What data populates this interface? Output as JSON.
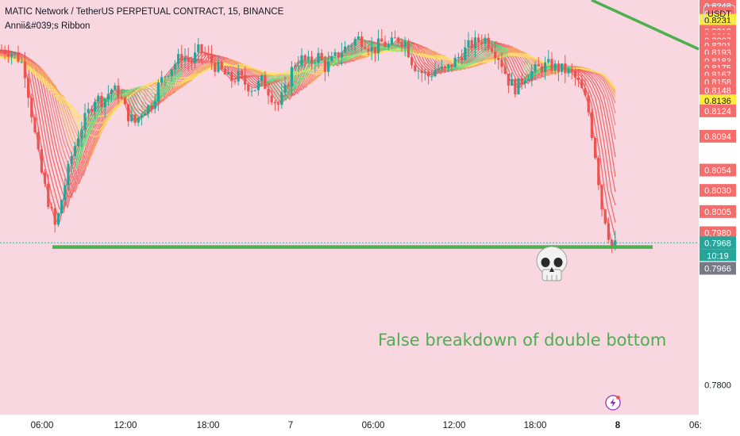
{
  "header": {
    "symbol_line": "MATIC Network / TetherUS PERPETUAL CONTRACT, 15, BINANCE",
    "indicator_name": "Annii&#039;s Ribbon"
  },
  "currency_button": "USDT",
  "annotation": "False breakdown of double bottom",
  "colors": {
    "background": "#f8d7e0",
    "axis_bg": "#ffffff",
    "bull": "#26a69a",
    "bear": "#ef5350",
    "support_line": "#4caf50",
    "ribbon_bull": "#3ddc84",
    "ribbon_bear": "#f05a5a",
    "ribbon_mid": "#ffe066",
    "price_label_red": "#f56c6c",
    "price_label_yellow": "#ffeb3b",
    "current_price_green": "#26a69a",
    "prev_close_gray": "#787b86"
  },
  "icons": {
    "skull": "skull-icon",
    "lightning": "lightning-icon"
  },
  "chart_data": {
    "type": "candlestick",
    "title": "MATIC Network / TetherUS PERPETUAL CONTRACT, 15, BINANCE",
    "ylim": [
      0.7765,
      0.8255
    ],
    "y_ticks": [
      "0.8248",
      "0.8239",
      "0.8231",
      "0.8218",
      "0.8212",
      "0.8207",
      "0.8201",
      "0.8193",
      "0.8183",
      "0.8175",
      "0.8167",
      "0.8158",
      "0.8148",
      "0.8136",
      "0.8124",
      "0.8094",
      "0.8054",
      "0.8030",
      "0.8005",
      "0.7980",
      "0.7968",
      "0.7966",
      "0.7800"
    ],
    "y_label_values": [
      0.8248,
      0.8239,
      0.8231,
      0.8218,
      0.8212,
      0.8207,
      0.8201,
      0.8193,
      0.8183,
      0.8175,
      0.8167,
      0.8158,
      0.8148,
      0.8136,
      0.8124,
      0.8094,
      0.8054,
      0.803,
      0.8005,
      0.798,
      0.7968,
      0.7966,
      0.78
    ],
    "highlighted_prices": {
      "yellow": [
        "0.8231",
        "0.8136"
      ],
      "current": "0.7968",
      "countdown": "10:19",
      "prev": "0.7966"
    },
    "x_ticks": [
      "06:00",
      "12:00",
      "18:00",
      "7",
      "06:00",
      "12:00",
      "18:00",
      "8",
      "06:"
    ],
    "support_level": 0.7963,
    "ribbon_anchor_points": [
      [
        0,
        0.8185
      ],
      [
        25,
        0.818
      ],
      [
        50,
        0.8155
      ],
      [
        75,
        0.8125
      ],
      [
        100,
        0.8115
      ],
      [
        130,
        0.814
      ],
      [
        160,
        0.8148
      ],
      [
        190,
        0.816
      ],
      [
        220,
        0.817
      ],
      [
        250,
        0.8175
      ],
      [
        280,
        0.8178
      ],
      [
        310,
        0.8172
      ],
      [
        340,
        0.8168
      ],
      [
        370,
        0.8172
      ],
      [
        400,
        0.818
      ],
      [
        430,
        0.8188
      ],
      [
        460,
        0.8193
      ],
      [
        490,
        0.8195
      ],
      [
        520,
        0.819
      ],
      [
        550,
        0.8182
      ],
      [
        580,
        0.8178
      ],
      [
        610,
        0.8185
      ],
      [
        640,
        0.819
      ],
      [
        670,
        0.8182
      ],
      [
        700,
        0.8177
      ],
      [
        730,
        0.8175
      ],
      [
        760,
        0.8165
      ],
      [
        775,
        0.8145
      ]
    ],
    "price_path": [
      [
        0,
        0.8196
      ],
      [
        10,
        0.8195
      ],
      [
        20,
        0.819
      ],
      [
        30,
        0.8178
      ],
      [
        40,
        0.812
      ],
      [
        50,
        0.806
      ],
      [
        60,
        0.802
      ],
      [
        70,
        0.7985
      ],
      [
        80,
        0.803
      ],
      [
        90,
        0.807
      ],
      [
        100,
        0.81
      ],
      [
        110,
        0.812
      ],
      [
        120,
        0.814
      ],
      [
        130,
        0.8135
      ],
      [
        140,
        0.815
      ],
      [
        150,
        0.8145
      ],
      [
        160,
        0.812
      ],
      [
        170,
        0.811
      ],
      [
        180,
        0.8125
      ],
      [
        190,
        0.813
      ],
      [
        200,
        0.8155
      ],
      [
        210,
        0.817
      ],
      [
        220,
        0.818
      ],
      [
        230,
        0.819
      ],
      [
        240,
        0.818
      ],
      [
        250,
        0.8195
      ],
      [
        260,
        0.819
      ],
      [
        270,
        0.8178
      ],
      [
        280,
        0.817
      ],
      [
        290,
        0.816
      ],
      [
        300,
        0.8165
      ],
      [
        310,
        0.8155
      ],
      [
        320,
        0.815
      ],
      [
        330,
        0.816
      ],
      [
        340,
        0.8145
      ],
      [
        350,
        0.813
      ],
      [
        360,
        0.815
      ],
      [
        370,
        0.818
      ],
      [
        380,
        0.8185
      ],
      [
        390,
        0.818
      ],
      [
        400,
        0.819
      ],
      [
        410,
        0.8175
      ],
      [
        420,
        0.8185
      ],
      [
        430,
        0.8195
      ],
      [
        440,
        0.8202
      ],
      [
        450,
        0.821
      ],
      [
        460,
        0.8205
      ],
      [
        470,
        0.8195
      ],
      [
        480,
        0.8205
      ],
      [
        490,
        0.82
      ],
      [
        500,
        0.821
      ],
      [
        510,
        0.8205
      ],
      [
        520,
        0.818
      ],
      [
        530,
        0.817
      ],
      [
        540,
        0.8165
      ],
      [
        550,
        0.8175
      ],
      [
        560,
        0.817
      ],
      [
        570,
        0.818
      ],
      [
        580,
        0.819
      ],
      [
        590,
        0.82
      ],
      [
        600,
        0.8205
      ],
      [
        610,
        0.821
      ],
      [
        620,
        0.82
      ],
      [
        630,
        0.8185
      ],
      [
        640,
        0.816
      ],
      [
        650,
        0.815
      ],
      [
        660,
        0.8165
      ],
      [
        670,
        0.817
      ],
      [
        680,
        0.8175
      ],
      [
        690,
        0.8178
      ],
      [
        700,
        0.8175
      ],
      [
        710,
        0.8172
      ],
      [
        720,
        0.8168
      ],
      [
        730,
        0.8155
      ],
      [
        740,
        0.813
      ],
      [
        750,
        0.807
      ],
      [
        758,
        0.801
      ],
      [
        764,
        0.799
      ],
      [
        768,
        0.797
      ],
      [
        772,
        0.796
      ],
      [
        776,
        0.7968
      ]
    ]
  }
}
